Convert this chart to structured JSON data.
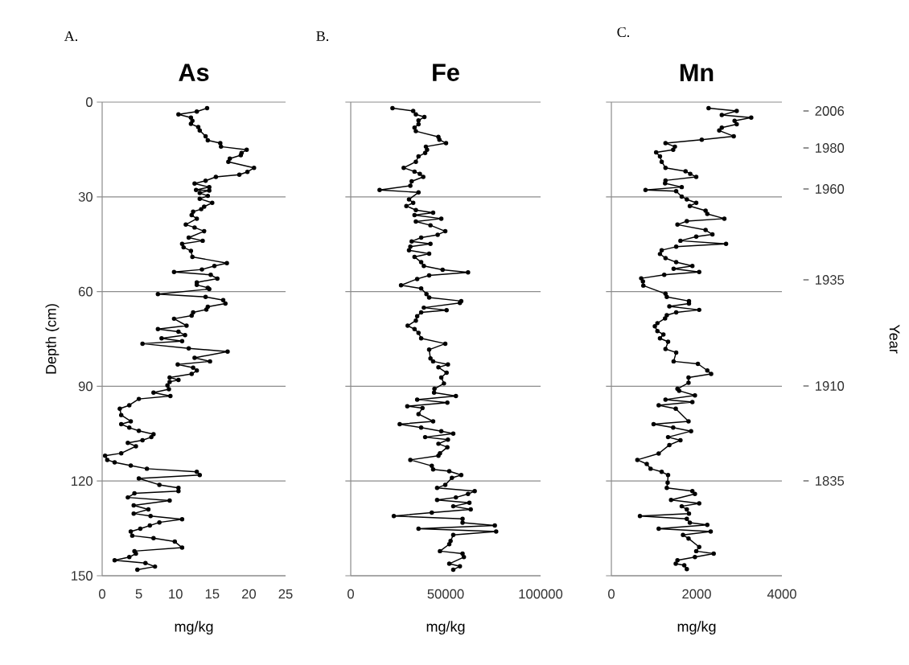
{
  "chart_data": [
    {
      "type": "line",
      "title": "As",
      "xlabel": "mg/kg",
      "ylabel": "Depth (cm)",
      "annotations": [
        "A."
      ],
      "xlim": [
        0,
        25
      ],
      "ylim": [
        150,
        0
      ],
      "xticks": [
        0,
        5,
        10,
        15,
        20,
        25
      ],
      "yticks": [
        0,
        30,
        60,
        90,
        120,
        150
      ],
      "grid": "y",
      "marker": "circle",
      "series": [
        {
          "color": "#000000",
          "x": [
            14.3,
            12.9,
            10.4,
            12.1,
            12.3,
            12.1,
            13.1,
            13.3,
            14.1,
            14.4,
            16.1,
            16.2,
            19.7,
            19.0,
            18.9,
            17.4,
            17.2,
            20.7,
            19.8,
            18.7,
            15.5,
            14.1,
            12.6,
            14.6,
            12.8,
            14.6,
            13.3,
            14.4,
            13.3,
            15.0,
            13.9,
            13.5,
            12.4,
            12.2,
            12.9,
            11.4,
            12.6,
            13.9,
            11.8,
            13.7,
            10.9,
            11.1,
            12.1,
            12.3,
            17.0,
            15.3,
            13.6,
            9.8,
            14.8,
            15.7,
            12.9,
            12.9,
            14.4,
            14.6,
            7.6,
            14.1,
            16.5,
            16.8,
            14.4,
            14.2,
            12.4,
            12.2,
            9.8,
            11.5,
            7.6,
            10.4,
            11.3,
            8.1,
            10.9,
            5.5,
            11.8,
            17.1,
            12.6,
            14.7,
            10.3,
            12.4,
            12.9,
            12.2,
            9.2,
            10.4,
            9.2,
            8.9,
            9.1,
            7.0,
            9.3,
            5.0,
            3.7,
            2.4,
            2.6,
            3.9,
            2.6,
            3.7,
            5.0,
            7.0,
            6.7,
            5.5,
            3.5,
            4.6,
            2.6,
            0.4,
            0.7,
            1.7,
            3.9,
            6.1,
            12.9,
            13.3,
            5.0,
            7.8,
            10.4,
            10.4,
            4.4,
            3.5,
            9.2,
            4.3,
            6.3,
            4.3,
            6.6,
            10.9,
            7.8,
            6.5,
            5.2,
            3.9,
            4.1,
            7.0,
            9.9,
            10.9,
            4.4,
            4.6,
            3.7,
            1.7,
            5.9,
            7.2,
            4.8
          ],
          "values": [
            1.9,
            3.0,
            3.9,
            4.9,
            5.9,
            6.9,
            7.9,
            9.0,
            10.8,
            12.1,
            13.0,
            14.1,
            15.1,
            16.1,
            16.8,
            17.9,
            18.9,
            20.8,
            22.1,
            23.0,
            23.7,
            24.9,
            25.8,
            26.9,
            27.8,
            28.0,
            28.8,
            29.7,
            30.6,
            31.9,
            33.1,
            33.9,
            34.7,
            35.8,
            36.9,
            38.8,
            39.7,
            40.9,
            42.9,
            43.9,
            44.9,
            46.0,
            47.1,
            49.0,
            51.0,
            51.9,
            53.0,
            53.8,
            54.7,
            55.9,
            57.1,
            57.9,
            58.8,
            59.2,
            60.8,
            61.7,
            62.7,
            63.8,
            64.8,
            65.7,
            66.6,
            67.6,
            68.6,
            70.8,
            71.9,
            72.7,
            73.8,
            74.8,
            75.7,
            76.5,
            78.0,
            79.0,
            81.0,
            82.1,
            83.1,
            84.1,
            85.0,
            86.1,
            87.2,
            88.0,
            88.6,
            89.7,
            90.9,
            92.0,
            93.1,
            94.0,
            96.0,
            97.1,
            99.1,
            101.1,
            102.0,
            103.1,
            104.1,
            105.2,
            106.1,
            107.1,
            107.9,
            109.0,
            111.2,
            112.0,
            113.3,
            114.1,
            115.1,
            116.1,
            117.1,
            118.1,
            119.2,
            121.2,
            122.2,
            123.2,
            123.9,
            125.2,
            126.2,
            127.7,
            129.0,
            130.3,
            131.1,
            132.1,
            133.1,
            134.1,
            135.1,
            136.0,
            137.3,
            138.1,
            139.2,
            141.1,
            142.2,
            143.0,
            144.1,
            145.1,
            146.0,
            147.1,
            148.1
          ]
        }
      ]
    },
    {
      "type": "line",
      "title": "Fe",
      "xlabel": "mg/kg",
      "annotations": [
        "B."
      ],
      "xlim": [
        0,
        100000
      ],
      "ylim": [
        150,
        0
      ],
      "xticks": [
        0,
        50000,
        100000
      ],
      "yticks": [
        0,
        30,
        60,
        90,
        120,
        150
      ],
      "grid": "y",
      "marker": "circle",
      "tick_labels": "x",
      "series": [
        {
          "color": "#000000",
          "x": [
            22000,
            32900,
            34300,
            38800,
            35700,
            35700,
            33600,
            34300,
            46200,
            46700,
            50200,
            39600,
            40200,
            39200,
            35700,
            34300,
            27900,
            33600,
            36400,
            38200,
            32100,
            31400,
            15200,
            35700,
            30700,
            32900,
            29300,
            34300,
            43400,
            33600,
            47700,
            34300,
            42000,
            49800,
            45800,
            37100,
            32100,
            42000,
            31400,
            30700,
            41300,
            33600,
            37100,
            38500,
            48400,
            61800,
            41300,
            35000,
            26500,
            37100,
            39900,
            41300,
            58200,
            57500,
            38500,
            50500,
            37100,
            35000,
            34300,
            30000,
            33600,
            35700,
            37100,
            49800,
            41300,
            42000,
            43400,
            51200,
            46200,
            50500,
            47700,
            49100,
            44100,
            43900,
            55400,
            35000,
            50900,
            29800,
            37800,
            35700,
            43400,
            25800,
            37100,
            47700,
            54000,
            39200,
            51200,
            46200,
            50900,
            47000,
            46200,
            31400,
            42700,
            43400,
            51900,
            58200,
            53300,
            49800,
            45500,
            65300,
            61800,
            55400,
            45500,
            62500,
            54000,
            63200,
            42700,
            22700,
            58900,
            58900,
            75900,
            35700,
            76600,
            54000,
            52600,
            51900,
            47000,
            58900,
            59600,
            51900,
            57500,
            54000
          ],
          "values": [
            1.9,
            2.8,
            3.9,
            4.7,
            5.8,
            7.0,
            8.1,
            9.2,
            11.0,
            11.9,
            13.0,
            14.1,
            15.1,
            16.1,
            17.2,
            18.9,
            20.8,
            22.0,
            22.7,
            23.7,
            25.1,
            26.5,
            27.8,
            28.6,
            30.8,
            31.9,
            32.9,
            34.2,
            35.0,
            35.8,
            36.9,
            37.8,
            39.0,
            40.9,
            42.0,
            42.9,
            44.1,
            44.9,
            45.8,
            46.9,
            48.0,
            49.0,
            50.7,
            51.9,
            53.1,
            53.9,
            54.9,
            56.0,
            58.0,
            59.0,
            60.8,
            61.9,
            63.0,
            63.6,
            65.1,
            65.9,
            66.6,
            67.8,
            69.2,
            70.8,
            71.9,
            73.1,
            74.8,
            76.5,
            78.4,
            81.2,
            82.1,
            83.1,
            84.0,
            85.7,
            87.2,
            89.1,
            90.8,
            92.0,
            93.1,
            94.2,
            95.2,
            96.3,
            96.9,
            98.8,
            101.1,
            102.0,
            103.1,
            104.2,
            105.0,
            106.1,
            106.9,
            108.2,
            109.3,
            111.2,
            112.0,
            113.3,
            115.2,
            116.3,
            116.9,
            118.1,
            119.0,
            121.2,
            122.2,
            123.2,
            124.1,
            125.2,
            126.0,
            126.9,
            128.0,
            129.0,
            130.0,
            131.1,
            132.0,
            133.2,
            134.1,
            135.1,
            136.0,
            137.1,
            139.0,
            140.0,
            142.2,
            143.0,
            144.1,
            146.2,
            147.0,
            148.1
          ]
        }
      ]
    },
    {
      "type": "line",
      "title": "Mn",
      "xlabel": "mg/kg",
      "y2label": "Year",
      "annotations": [
        "C.",
        "2006",
        "1980",
        "1960",
        "1935",
        "1910",
        "1835"
      ],
      "xlim": [
        0,
        4000
      ],
      "ylim": [
        150,
        0
      ],
      "xticks": [
        0,
        2000,
        4000
      ],
      "yticks": [
        0,
        30,
        60,
        90,
        120,
        150
      ],
      "grid": "y",
      "marker": "circle",
      "tick_labels": "x",
      "series": [
        {
          "color": "#000000",
          "x": [
            2280,
            2940,
            2590,
            3280,
            2890,
            2940,
            2590,
            2530,
            2870,
            2120,
            1270,
            1490,
            1450,
            1050,
            1140,
            1180,
            1270,
            1740,
            1850,
            1990,
            1270,
            1260,
            1650,
            800,
            1520,
            1650,
            1770,
            1990,
            1840,
            2210,
            2250,
            2650,
            1770,
            1550,
            2210,
            2370,
            1990,
            1620,
            2690,
            1520,
            1180,
            1140,
            1270,
            1520,
            1900,
            1460,
            2060,
            1240,
            700,
            740,
            750,
            1270,
            1300,
            1820,
            1820,
            1360,
            2060,
            1520,
            1300,
            1260,
            1080,
            1020,
            1080,
            1220,
            1140,
            1330,
            1270,
            1520,
            1460,
            2030,
            2250,
            2340,
            1810,
            1810,
            1550,
            1590,
            1960,
            1270,
            1900,
            1110,
            1510,
            1810,
            990,
            1450,
            1870,
            1330,
            1620,
            1360,
            1110,
            610,
            830,
            920,
            1180,
            1330,
            1320,
            1300,
            1900,
            1960,
            1400,
            2060,
            1650,
            1770,
            1820,
            670,
            1770,
            1840,
            2250,
            1110,
            2330,
            1680,
            1810,
            2060,
            1990,
            2400,
            1960,
            1550,
            1510,
            1710,
            1770
          ],
          "values": [
            1.9,
            2.8,
            4.1,
            4.9,
            5.9,
            7.0,
            8.1,
            9.0,
            10.8,
            11.9,
            13.0,
            14.1,
            15.1,
            15.9,
            17.2,
            18.9,
            20.8,
            21.9,
            22.7,
            23.7,
            24.8,
            25.7,
            26.9,
            27.8,
            28.2,
            29.9,
            30.8,
            31.9,
            32.9,
            34.4,
            35.4,
            36.9,
            37.7,
            38.8,
            40.5,
            41.9,
            42.6,
            43.9,
            44.9,
            45.8,
            46.9,
            48.1,
            49.4,
            50.7,
            51.9,
            52.8,
            53.8,
            54.7,
            55.8,
            56.8,
            58.1,
            60.7,
            61.7,
            63.0,
            63.8,
            64.7,
            65.8,
            66.6,
            67.5,
            68.5,
            70.0,
            71.0,
            72.5,
            73.6,
            74.8,
            75.9,
            78.2,
            79.3,
            82.1,
            82.9,
            85.0,
            86.1,
            87.2,
            88.9,
            90.8,
            91.4,
            92.9,
            94.2,
            95.0,
            96.0,
            97.1,
            101.1,
            102.0,
            103.1,
            104.2,
            106.1,
            107.1,
            108.6,
            111.3,
            113.3,
            114.6,
            116.1,
            117.1,
            118.1,
            120.5,
            122.2,
            123.2,
            124.1,
            126.0,
            127.1,
            128.0,
            129.0,
            130.3,
            131.1,
            132.0,
            133.2,
            133.9,
            135.1,
            136.0,
            137.1,
            138.2,
            140.9,
            142.2,
            143.0,
            144.1,
            145.1,
            146.2,
            146.7,
            147.9
          ]
        }
      ]
    }
  ]
}
